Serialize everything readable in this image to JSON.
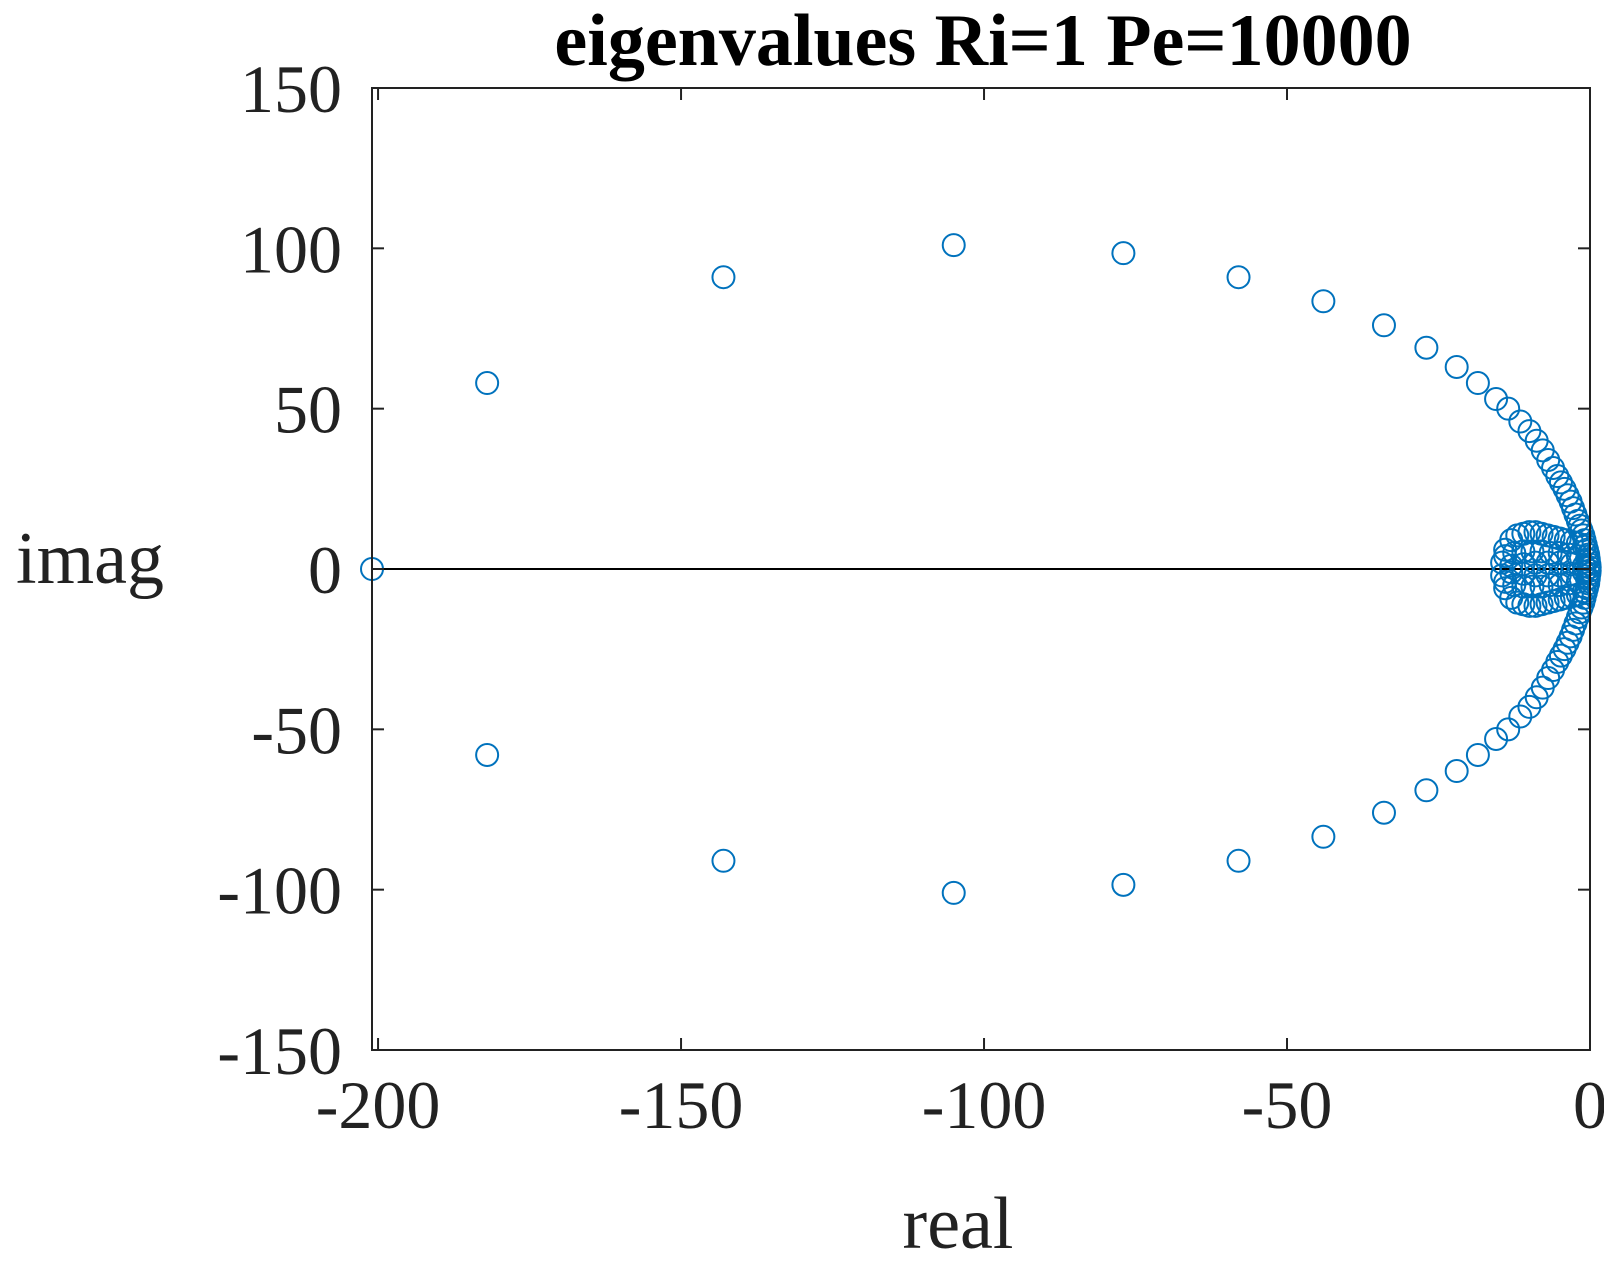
{
  "chart_data": {
    "type": "scatter",
    "title": "eigenvalues Ri=1 Pe=10000",
    "xlabel": "real",
    "ylabel": "imag",
    "xlim": [
      -201,
      0
    ],
    "ylim": [
      -150,
      150
    ],
    "xticks": [
      -200,
      -150,
      -100,
      -50,
      0
    ],
    "yticks": [
      -150,
      -100,
      -50,
      0,
      50,
      100,
      150
    ],
    "xtick_labels": [
      "-200",
      "-150",
      "-100",
      "-50",
      "0"
    ],
    "ytick_labels": [
      "-150",
      "-100",
      "-50",
      "0",
      "50",
      "100",
      "150"
    ],
    "grid": false,
    "legend": "none",
    "marker": "open-circle",
    "color": "#0072BD",
    "zero_line_color": "#000000",
    "series": [
      {
        "x": [
          -201,
          -182,
          -143,
          -105,
          -77,
          -58,
          -44,
          -34,
          -27,
          -22,
          -18.5,
          -15.5,
          -13.5,
          -11.5,
          -10,
          -8.8,
          -7.8,
          -6.9,
          -6.1,
          -5.4,
          -4.8,
          -4.2,
          -3.7,
          -3.2,
          -2.8,
          -2.4,
          -2.0,
          -1.7,
          -1.4,
          -1.1,
          -0.9,
          -0.7,
          -0.5,
          -0.3,
          -0.2,
          -0.1,
          -0.05,
          -182,
          -143,
          -105,
          -77,
          -58,
          -44,
          -34,
          -27,
          -22,
          -18.5,
          -15.5,
          -13.5,
          -11.5,
          -10,
          -8.8,
          -7.8,
          -6.9,
          -6.1,
          -5.4,
          -4.8,
          -4.2,
          -3.7,
          -3.2,
          -2.8,
          -2.4,
          -2.0,
          -1.7,
          -1.4,
          -1.1,
          -0.9,
          -0.7,
          -0.5,
          -0.3,
          -0.2,
          -0.1,
          -0.05,
          -14.5,
          -14,
          -13,
          -12,
          -11,
          -10,
          -9,
          -8,
          -7,
          -6,
          -5,
          -4,
          -3,
          -2,
          -1,
          -14.5,
          -14,
          -13,
          -12,
          -11,
          -10,
          -9,
          -8,
          -7,
          -6,
          -5,
          -4,
          -3,
          -2,
          -1,
          -14,
          -12.5,
          -11,
          -9.5,
          -8,
          -6.5,
          -5,
          -3.5,
          -2,
          -0.5,
          -14,
          -12.5,
          -11,
          -9.5,
          -8,
          -6.5,
          -5,
          -3.5,
          -2,
          -0.5,
          -13,
          -11,
          -9,
          -7,
          -5,
          -3,
          -1,
          -13,
          -11,
          -9,
          -7,
          -5,
          -3,
          -1
        ],
        "y": [
          0,
          58,
          91,
          101,
          98.5,
          91,
          83.5,
          76,
          69,
          63,
          58,
          53,
          50,
          46,
          43,
          40,
          37,
          34,
          31.5,
          29,
          27,
          25,
          23,
          21,
          19,
          17,
          15,
          13.5,
          12,
          10.5,
          9,
          7.5,
          6,
          4.5,
          3,
          1.5,
          0.5,
          -58,
          -91,
          -101,
          -98.5,
          -91,
          -83.5,
          -76,
          -69,
          -63,
          -58,
          -53,
          -50,
          -46,
          -43,
          -40,
          -37,
          -34,
          -31.5,
          -29,
          -27,
          -25,
          -23,
          -21,
          -19,
          -17,
          -15,
          -13.5,
          -12,
          -10.5,
          -9,
          -7.5,
          -6,
          -4.5,
          -3,
          -1.5,
          -0.5,
          2,
          6,
          9,
          10.5,
          11,
          11.5,
          11.5,
          11,
          10.5,
          10,
          9.5,
          9,
          8.5,
          8,
          7,
          -2,
          -6,
          -9,
          -10.5,
          -11,
          -11.5,
          -11.5,
          -11,
          -10.5,
          -10,
          -9.5,
          -9,
          -8.5,
          -8,
          -7,
          4,
          5,
          5.5,
          5.5,
          5.5,
          5,
          5,
          4.5,
          4,
          3,
          -4,
          -5,
          -5.5,
          -5.5,
          -5.5,
          -5,
          -5,
          -4.5,
          -4,
          -3,
          1,
          1.5,
          2,
          2,
          2,
          1.5,
          1,
          -1,
          -1.5,
          -2,
          -2,
          -2,
          -1.5,
          -1
        ]
      }
    ]
  }
}
